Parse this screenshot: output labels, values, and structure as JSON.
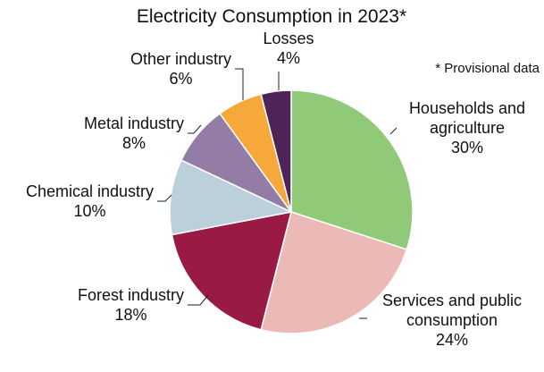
{
  "chart_data": {
    "type": "pie",
    "title": "Electricity Consumption in 2023*",
    "note": "* Provisional data",
    "slices": [
      {
        "label": [
          "Households and",
          "agriculture"
        ],
        "value": 30,
        "value_label": "30%",
        "color": "#90c978"
      },
      {
        "label": [
          "Services and public",
          "consumption"
        ],
        "value": 24,
        "value_label": "24%",
        "color": "#ebbab6"
      },
      {
        "label": [
          "Forest industry"
        ],
        "value": 18,
        "value_label": "18%",
        "color": "#991b45"
      },
      {
        "label": [
          "Chemical industry"
        ],
        "value": 10,
        "value_label": "10%",
        "color": "#bcd0dc"
      },
      {
        "label": [
          "Metal industry"
        ],
        "value": 8,
        "value_label": "8%",
        "color": "#937da6"
      },
      {
        "label": [
          "Other industry"
        ],
        "value": 6,
        "value_label": "6%",
        "color": "#f6a83a"
      },
      {
        "label": [
          "Losses"
        ],
        "value": 4,
        "value_label": "4%",
        "color": "#4f2258"
      }
    ]
  }
}
